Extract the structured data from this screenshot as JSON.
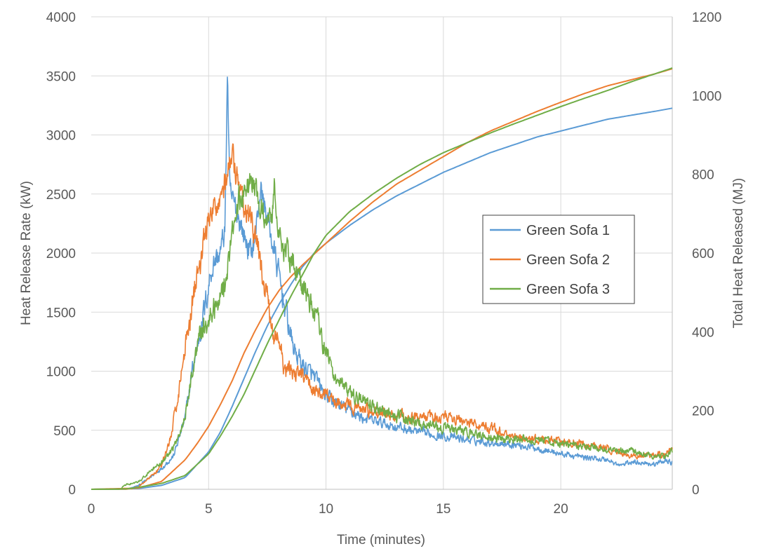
{
  "chart_data": {
    "type": "line",
    "title": "",
    "xlabel": "Time (minutes)",
    "ylabel": "Heat Release Rate (kW)",
    "y2label": "Total Heat Released (MJ)",
    "xlim": [
      0,
      24.75
    ],
    "ylim": [
      0,
      4000
    ],
    "y2lim": [
      0,
      1200
    ],
    "x_ticks": [
      0,
      5,
      10,
      15,
      20
    ],
    "y_ticks": [
      0,
      500,
      1000,
      1500,
      2000,
      2500,
      3000,
      3500,
      4000
    ],
    "y2_ticks": [
      0,
      200,
      400,
      600,
      800,
      1000,
      1200
    ],
    "grid": true,
    "legend_position": "right-center",
    "series": [
      {
        "name": "Green Sofa 1",
        "color": "#5b9bd5",
        "hrr": {
          "x": [
            0,
            1.5,
            2.0,
            2.5,
            3.0,
            3.5,
            4.0,
            4.3,
            4.6,
            4.9,
            5.1,
            5.3,
            5.5,
            5.7,
            5.8,
            5.9,
            6.1,
            6.3,
            6.5,
            6.8,
            7.0,
            7.2,
            7.5,
            7.8,
            8.0,
            8.3,
            8.6,
            9.0,
            9.5,
            10.0,
            10.5,
            11.0,
            11.5,
            12.0,
            13.0,
            14.0,
            15.0,
            16.0,
            17.0,
            18.0,
            19.0,
            20.0,
            21.0,
            22.0,
            22.5,
            23.0,
            23.5,
            24.0,
            24.5,
            24.75
          ],
          "y": [
            0,
            0,
            30,
            100,
            180,
            280,
            600,
            1000,
            1300,
            1600,
            1850,
            1950,
            2000,
            2200,
            3550,
            2500,
            2400,
            2300,
            2150,
            2000,
            2150,
            2550,
            2300,
            2000,
            1800,
            1500,
            1200,
            1050,
            950,
            780,
            720,
            670,
            610,
            580,
            530,
            480,
            450,
            420,
            400,
            380,
            350,
            300,
            270,
            250,
            200,
            230,
            230,
            210,
            250,
            220
          ]
        },
        "thr": {
          "x": [
            0,
            2,
            3,
            4,
            5,
            5.5,
            6,
            6.5,
            7,
            7.5,
            8,
            8.5,
            9,
            9.5,
            10,
            11,
            12,
            13,
            14,
            15,
            16,
            17,
            18,
            19,
            20,
            21,
            22,
            23,
            24,
            24.75
          ],
          "y": [
            0,
            2,
            10,
            30,
            95,
            145,
            210,
            280,
            350,
            415,
            470,
            520,
            565,
            600,
            625,
            670,
            710,
            745,
            775,
            805,
            830,
            855,
            875,
            895,
            910,
            925,
            940,
            950,
            960,
            968
          ]
        }
      },
      {
        "name": "Green Sofa 2",
        "color": "#ed7d31",
        "hrr": {
          "x": [
            0,
            1.5,
            2.0,
            2.5,
            3.0,
            3.4,
            3.7,
            4.0,
            4.3,
            4.6,
            4.9,
            5.2,
            5.5,
            5.8,
            6.0,
            6.1,
            6.3,
            6.5,
            6.7,
            6.9,
            7.1,
            7.3,
            7.5,
            7.7,
            8.0,
            8.2,
            8.5,
            9.0,
            9.5,
            10.0,
            10.5,
            11.0,
            12.0,
            13.0,
            14.0,
            15.0,
            16.0,
            17.0,
            18.0,
            19.0,
            20.0,
            21.0,
            22.0,
            22.5,
            23.0,
            23.5,
            24.0,
            24.5,
            24.75
          ],
          "y": [
            0,
            0,
            20,
            100,
            200,
            450,
            800,
            1200,
            1600,
            1900,
            2200,
            2350,
            2500,
            2650,
            2850,
            2700,
            2550,
            2350,
            2300,
            2200,
            2050,
            1800,
            1600,
            1350,
            1250,
            1000,
            1000,
            950,
            850,
            780,
            750,
            700,
            650,
            620,
            600,
            620,
            570,
            520,
            450,
            420,
            400,
            380,
            350,
            300,
            280,
            290,
            290,
            300,
            340
          ]
        },
        "thr": {
          "x": [
            0,
            2,
            3,
            4,
            4.5,
            5,
            5.5,
            6,
            6.5,
            7,
            7.5,
            8,
            8.5,
            9,
            10,
            11,
            12,
            13,
            14,
            15,
            16,
            17,
            18,
            19,
            20,
            21,
            22,
            23,
            24,
            24.75
          ],
          "y": [
            0,
            3,
            20,
            75,
            115,
            160,
            215,
            275,
            345,
            405,
            460,
            505,
            540,
            570,
            625,
            680,
            730,
            775,
            810,
            845,
            880,
            910,
            935,
            960,
            983,
            1005,
            1025,
            1040,
            1055,
            1068
          ]
        }
      },
      {
        "name": "Green Sofa 3",
        "color": "#70ad47",
        "hrr": {
          "x": [
            0,
            1.2,
            1.5,
            2.0,
            2.5,
            3.0,
            3.5,
            4.0,
            4.3,
            4.6,
            5.0,
            5.3,
            5.6,
            5.9,
            6.1,
            6.3,
            6.6,
            6.9,
            7.1,
            7.4,
            7.7,
            7.8,
            8.0,
            8.3,
            8.6,
            9.0,
            9.3,
            9.7,
            10.0,
            10.3,
            10.6,
            11.0,
            12.0,
            13.0,
            14.0,
            15.0,
            16.0,
            17.0,
            18.0,
            19.0,
            20.0,
            21.0,
            22.0,
            22.5,
            23.0,
            23.5,
            24.0,
            24.5,
            24.75
          ],
          "y": [
            0,
            0,
            40,
            60,
            150,
            220,
            350,
            600,
            1000,
            1300,
            1450,
            1550,
            1700,
            2000,
            2300,
            2450,
            2550,
            2600,
            2450,
            2300,
            2350,
            2600,
            2150,
            2000,
            1950,
            1700,
            1600,
            1400,
            1150,
            1000,
            900,
            800,
            700,
            620,
            560,
            520,
            480,
            440,
            420,
            420,
            380,
            360,
            340,
            320,
            330,
            300,
            280,
            290,
            330
          ]
        },
        "thr": {
          "x": [
            0,
            1.5,
            2,
            3,
            4,
            5,
            5.5,
            6,
            6.5,
            7,
            7.5,
            8,
            8.5,
            9,
            9.5,
            10,
            11,
            12,
            13,
            14,
            15,
            16,
            17,
            18,
            19,
            20,
            21,
            22,
            23,
            24,
            24.75
          ],
          "y": [
            0,
            1,
            5,
            15,
            35,
            90,
            135,
            185,
            240,
            305,
            370,
            430,
            490,
            545,
            600,
            645,
            705,
            750,
            790,
            825,
            855,
            880,
            905,
            928,
            950,
            972,
            993,
            1013,
            1035,
            1055,
            1070
          ]
        }
      }
    ]
  }
}
